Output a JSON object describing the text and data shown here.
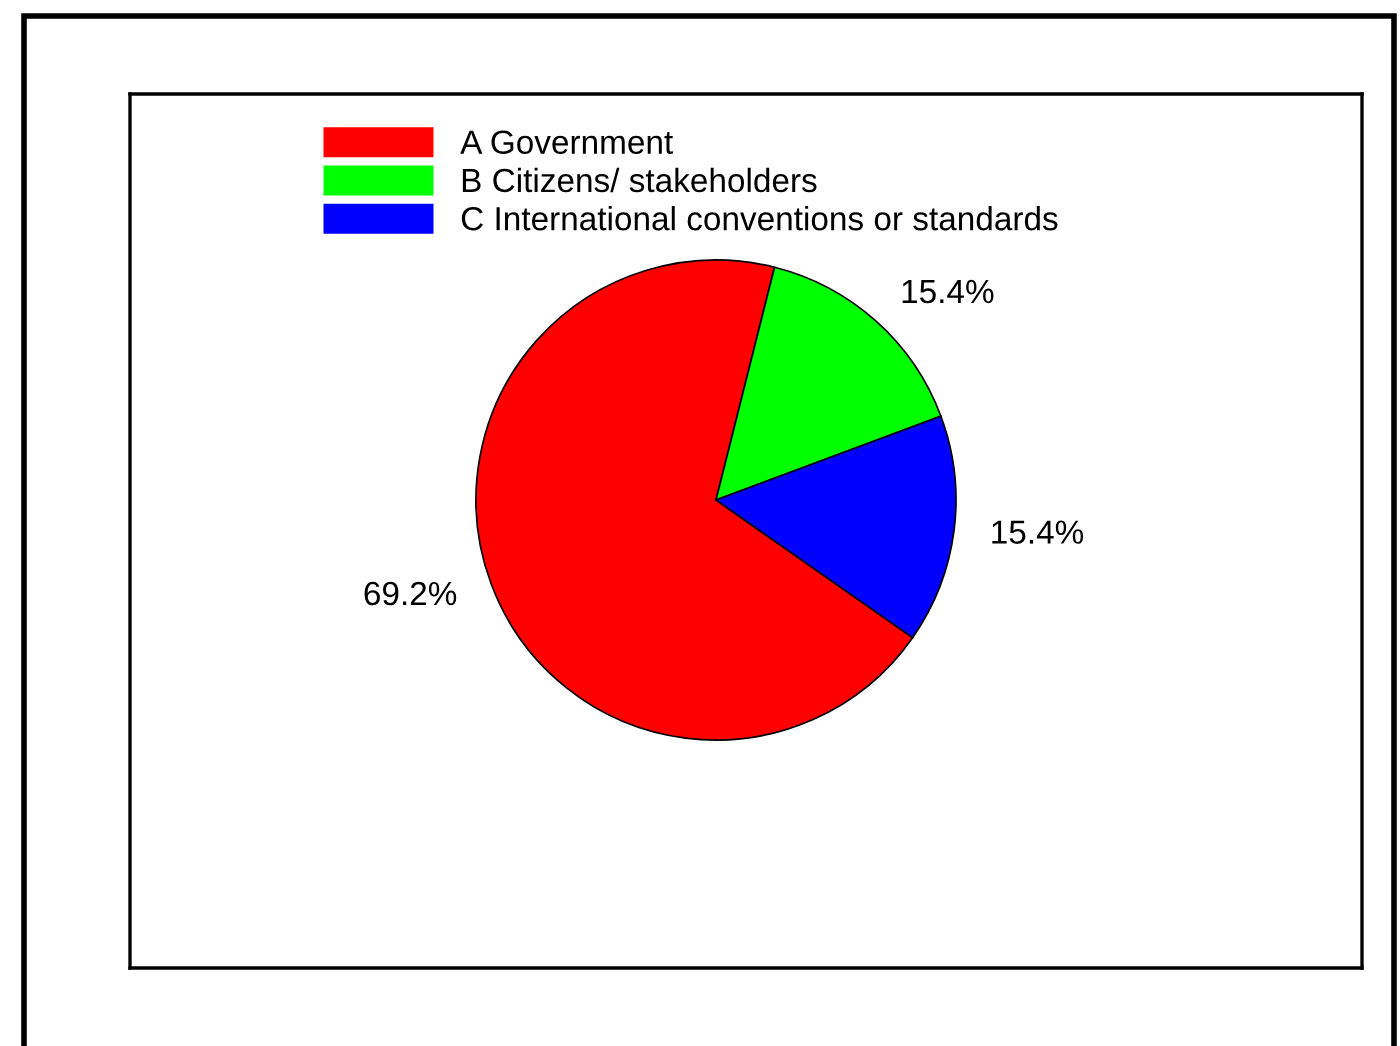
{
  "chart_data": {
    "type": "pie",
    "categories": [
      "A Government",
      "B Citizens/ stakeholders",
      "C International conventions or standards"
    ],
    "values": [
      69.2,
      15.4,
      15.4
    ],
    "colors": [
      "#ff0000",
      "#00ff00",
      "#0000ff"
    ],
    "value_labels": [
      "69.2%",
      "15.4%",
      "15.4%"
    ],
    "legend": "top left"
  }
}
